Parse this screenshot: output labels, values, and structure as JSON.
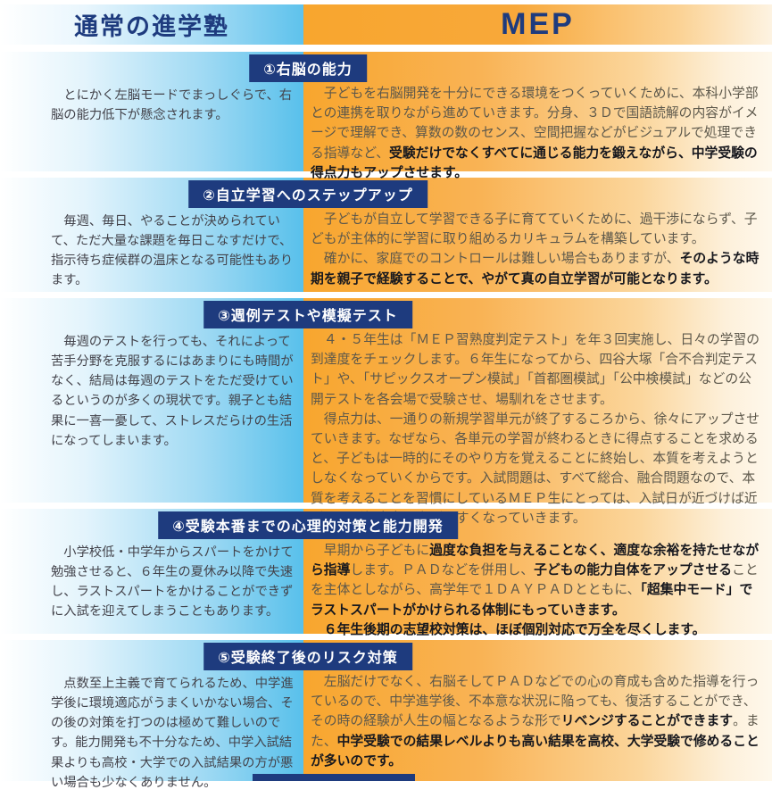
{
  "colors": {
    "navy": "#1e3b7e",
    "sky_blue": "#5ec2ec",
    "orange": "#f8a62e"
  },
  "header": {
    "left_title": "通常の進学塾",
    "right_title": "MEP"
  },
  "sections": [
    {
      "title": "①右脳の能力",
      "left": "　とにかく左脳モードでまっしぐらで、右脳の能力低下が懸念されます。",
      "right_segments": [
        {
          "text": "　子どもを右脳開発を十分にできる環境をつくっていくために、本科小学部との連携を取りながら進めていきます。分身、３Ｄで国語読解の内容がイメージで理解でき、算数の数のセンス、空間把握などがビジュアルで処理できる指導など、",
          "bold": false
        },
        {
          "text": "受験だけでなくすべてに通じる能力を鍛えながら、中学受験の得点力もアップさせます。",
          "bold": true
        }
      ]
    },
    {
      "title": "②自立学習へのステップアップ",
      "left": "　毎週、毎日、やることが決められていて、ただ大量な課題を毎日こなすだけで、指示待ち症候群の温床となる可能性もあります。",
      "right_segments": [
        {
          "text": "　子どもが自立して学習できる子に育てていくために、過干渉にならず、子どもが主体的に学習に取り組めるカリキュラムを構築しています。\n　確かに、家庭でのコントロールは難しい場合もありますが、",
          "bold": false
        },
        {
          "text": "そのような時期を親子で経験することで、やがて真の自立学習が可能となります。",
          "bold": true
        }
      ]
    },
    {
      "title": "③週例テストや模擬テスト",
      "left": "　毎週のテストを行っても、それによって苦手分野を克服するにはあまりにも時間がなく、結局は毎週のテストをただ受けているというのが多くの現状です。親子とも結果に一喜一憂して、ストレスだらけの生活になってしまいます。",
      "right_segments": [
        {
          "text": "　４・５年生は「ＭＥＰ習熟度判定テスト」を年３回実施し、日々の学習の到達度をチェックします。６年生になってから、四谷大塚「合不合判定テスト」や、「サピックスオープン模試」「首都圏模試」「公中検模試」などの公開テストを各会場で受験させ、場馴れをさせます。\n　得点力は、一通りの新規学習単元が終了するころから、徐々にアップさせていきます。なぜなら、各単元の学習が終わるときに得点することを求めると、子どもは一時的にそのやり方を覚えることに終始し、本質を考えようとしなくなっていくからです。入試問題は、すべて総合、融合問題なので、本質を考えることを習慣にしているＭＥＰ生にとっては、入試日が近づけば近づくほど得点力を上げやすくなっていきます。",
          "bold": false
        }
      ]
    },
    {
      "title": "④受験本番までの心理的対策と能力開発",
      "left": "　小学校低・中学年からスパートをかけて勉強させると、６年生の夏休み以降で失速し、ラストスパートをかけることができずに入試を迎えてしまうこともあります。",
      "right_segments": [
        {
          "text": "　早期から子どもに",
          "bold": false
        },
        {
          "text": "過度な負担を与えることなく、適度な余裕を持たせながら指導",
          "bold": true
        },
        {
          "text": "します。ＰＡＤなどを併用し、",
          "bold": false
        },
        {
          "text": "子どもの能力自体をアップさせる",
          "bold": true
        },
        {
          "text": "ことを主体としながら、高学年で１ＤＡＹＰＡＤとともに、",
          "bold": false
        },
        {
          "text": "「超集中モード」でラストスパートがかけられる体制にもっていきます。\n　６年生後期の志望校対策は、ほぼ個別対応で万全を尽くします。",
          "bold": true
        }
      ]
    },
    {
      "title": "⑤受験終了後のリスク対策",
      "left": "　点数至上主義で育てられるため、中学進学後に環境適応がうまくいかない場合、その後の対策を打つのは極めて難しいのです。能力開発も不十分なため、中学入試結果よりも高校・大学での入試結果の方が悪い場合も少なくありません。",
      "right_segments": [
        {
          "text": "　左脳だけでなく、右脳そしてＰＡＤなどでの心の育成も含めた指導を行っているので、中学進学後、不本意な状況に陥っても、復活することができ、その時の経験が人生の幅となるような形で",
          "bold": false
        },
        {
          "text": "リベンジすることができます",
          "bold": true
        },
        {
          "text": "。また、",
          "bold": false
        },
        {
          "text": "中学受験での結果レベルよりも高い結果を高校、大学受験で修めることが多いのです。",
          "bold": true
        }
      ]
    }
  ]
}
